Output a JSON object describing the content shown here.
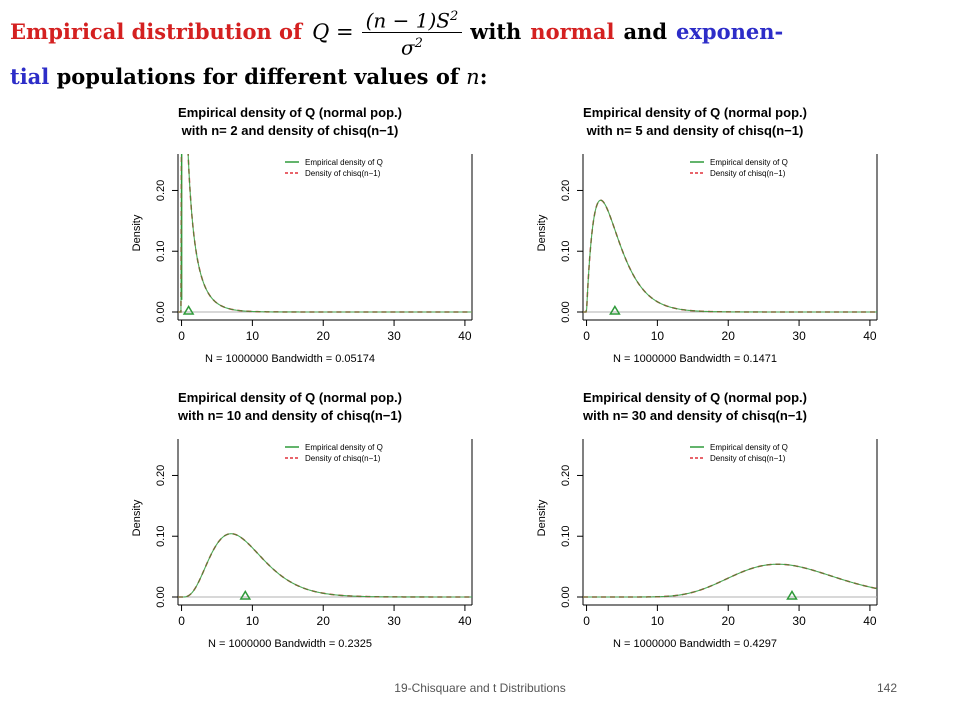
{
  "heading": {
    "prefix": "Empirical distribution of",
    "q_lhs": "Q =",
    "numerator": "(n − 1)S",
    "numerator_sup": "2",
    "denominator": "σ",
    "denominator_sup": "2",
    "with": "with",
    "normal": "normal",
    "and": "and",
    "exponen": "exponen-",
    "tial": "tial",
    "rest": "populations for different values of",
    "n": "n",
    "colon": ":"
  },
  "footer": {
    "center": "19-Chisquare and t Distributions",
    "page": "142"
  },
  "colors": {
    "empirical": "#2f9a3a",
    "chisq": "#e0303a",
    "triangle": "#2f9a3a",
    "axis": "#000000",
    "baseline": "#b0b0b0",
    "heading_red": "#d42020",
    "heading_blue": "#2d2dc8"
  },
  "chart_data": [
    {
      "type": "line",
      "title": "Empirical density of Q (normal pop.)",
      "subtitle": "with n= 2  and density of chisq(n−1)",
      "ylabel": "Density",
      "xlabel": "N = 1000000   Bandwidth = 0.05174",
      "n": 2,
      "df": 1,
      "xlim": [
        -0.5,
        41
      ],
      "ylim": [
        0,
        0.26
      ],
      "xticks": [
        0,
        10,
        20,
        30,
        40
      ],
      "yticks": [
        0.0,
        0.1,
        0.2
      ],
      "ytick_labels": [
        "0.00",
        "0.10",
        "0.20"
      ],
      "series": [
        {
          "name": "Empirical density of Q",
          "style": "solid",
          "color": "#2f9a3a"
        },
        {
          "name": "Density of chisq(n−1)",
          "style": "dashed",
          "color": "#e0303a"
        }
      ],
      "marker": {
        "shape": "triangle",
        "x": 1,
        "y": 0
      },
      "legend": "top-right"
    },
    {
      "type": "line",
      "title": "Empirical density of Q (normal pop.)",
      "subtitle": "with n= 5  and density of chisq(n−1)",
      "ylabel": "Density",
      "xlabel": "N = 1000000   Bandwidth = 0.1471",
      "n": 5,
      "df": 4,
      "xlim": [
        -0.5,
        41
      ],
      "ylim": [
        0,
        0.26
      ],
      "xticks": [
        0,
        10,
        20,
        30,
        40
      ],
      "yticks": [
        0.0,
        0.1,
        0.2
      ],
      "ytick_labels": [
        "0.00",
        "0.10",
        "0.20"
      ],
      "series": [
        {
          "name": "Empirical density of Q",
          "style": "solid",
          "color": "#2f9a3a"
        },
        {
          "name": "Density of chisq(n−1)",
          "style": "dashed",
          "color": "#e0303a"
        }
      ],
      "marker": {
        "shape": "triangle",
        "x": 4,
        "y": 0
      },
      "legend": "top-right"
    },
    {
      "type": "line",
      "title": "Empirical density of Q (normal pop.)",
      "subtitle": "with n= 10  and density of chisq(n−1)",
      "ylabel": "Density",
      "xlabel": "N = 1000000   Bandwidth = 0.2325",
      "n": 10,
      "df": 9,
      "xlim": [
        -0.5,
        41
      ],
      "ylim": [
        0,
        0.26
      ],
      "xticks": [
        0,
        10,
        20,
        30,
        40
      ],
      "yticks": [
        0.0,
        0.1,
        0.2
      ],
      "ytick_labels": [
        "0.00",
        "0.10",
        "0.20"
      ],
      "series": [
        {
          "name": "Empirical density of Q",
          "style": "solid",
          "color": "#2f9a3a"
        },
        {
          "name": "Density of chisq(n−1)",
          "style": "dashed",
          "color": "#e0303a"
        }
      ],
      "marker": {
        "shape": "triangle",
        "x": 9,
        "y": 0
      },
      "legend": "top-right"
    },
    {
      "type": "line",
      "title": "Empirical density of Q (normal pop.)",
      "subtitle": "with n= 30  and density of chisq(n−1)",
      "ylabel": "Density",
      "xlabel": "N = 1000000   Bandwidth = 0.4297",
      "n": 30,
      "df": 29,
      "xlim": [
        -0.5,
        41
      ],
      "ylim": [
        0,
        0.26
      ],
      "xticks": [
        0,
        10,
        20,
        30,
        40
      ],
      "yticks": [
        0.0,
        0.1,
        0.2
      ],
      "ytick_labels": [
        "0.00",
        "0.10",
        "0.20"
      ],
      "series": [
        {
          "name": "Empirical density of Q",
          "style": "solid",
          "color": "#2f9a3a"
        },
        {
          "name": "Density of chisq(n−1)",
          "style": "dashed",
          "color": "#e0303a"
        }
      ],
      "marker": {
        "shape": "triangle",
        "x": 29,
        "y": 0
      },
      "legend": "top-right"
    }
  ]
}
